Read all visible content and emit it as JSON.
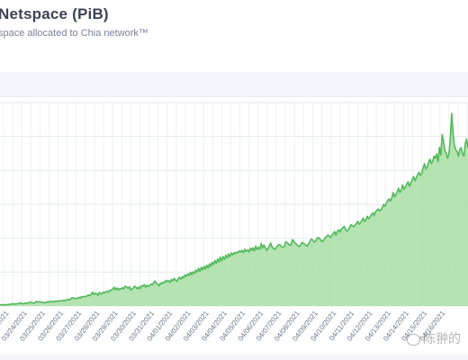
{
  "header": {
    "title": "Netspace (PiB)",
    "subtitle": "space allocated to Chia network™"
  },
  "watermark": {
    "text": "陈翀的"
  },
  "chart_data": {
    "type": "area",
    "title": "Netspace (PiB)",
    "subtitle": "space allocated to Chia network™",
    "xlabel": "",
    "ylabel": "",
    "grid": true,
    "color": "#52b95a",
    "fill": "#a8dea4",
    "x_tick_labels": [
      "03/23/2021",
      "03/24/2021",
      "03/25/2021",
      "03/26/2021",
      "03/27/2021",
      "03/28/2021",
      "03/29/2021",
      "03/30/2021",
      "03/31/2021",
      "04/01/2021",
      "04/02/2021",
      "04/03/2021",
      "04/04/2021",
      "04/05/2021",
      "04/06/2021",
      "04/07/2021",
      "04/08/2021",
      "04/09/2021",
      "04/10/2021",
      "04/11/2021",
      "04/12/2021",
      "04/13/2021",
      "04/14/2021",
      "04/15/2021",
      "04/16/2021"
    ],
    "series": [
      {
        "values": [
          12,
          10,
          14,
          8,
          13,
          11,
          16,
          12,
          18,
          22,
          17,
          21,
          19,
          24,
          22,
          30,
          26,
          20,
          24,
          28,
          23,
          31,
          36,
          34,
          30,
          27,
          35,
          42,
          36,
          40,
          38,
          35,
          33,
          29,
          35,
          41,
          37,
          44,
          39,
          43,
          40,
          46,
          42,
          48,
          45,
          52,
          47,
          55,
          50,
          58,
          62,
          56,
          66,
          78,
          70,
          74,
          68,
          72,
          81,
          75,
          88,
          85,
          90,
          86,
          95,
          102,
          96,
          110,
          130,
          108,
          120,
          115,
          100,
          125,
          118,
          112,
          130,
          122,
          135,
          140,
          128,
          150,
          148,
          160,
          175,
          152,
          168,
          150,
          162,
          158,
          172,
          160,
          185,
          178,
          165,
          180,
          150,
          158,
          170,
          185,
          176,
          160,
          178,
          162,
          190,
          185,
          200,
          175,
          195,
          183,
          192,
          205,
          198,
          220,
          232,
          210,
          202,
          190,
          215,
          208,
          225,
          218,
          240,
          228,
          236,
          220,
          248,
          235,
          258,
          242,
          230,
          255,
          268,
          250,
          275,
          262,
          290,
          278,
          300,
          285,
          315,
          292,
          320,
          305,
          335,
          318,
          350,
          325,
          362,
          338,
          370,
          345,
          380,
          355,
          395,
          372,
          410,
          388,
          425,
          398,
          440,
          412,
          455,
          422,
          462,
          435,
          475,
          450,
          485,
          462,
          495,
          478,
          500,
          488,
          505,
          496,
          515,
          505,
          520,
          498,
          530,
          510,
          522,
          505,
          540,
          520,
          545,
          515,
          560,
          528,
          548,
          530,
          585,
          540,
          570,
          548,
          520,
          536,
          560,
          590,
          548,
          540,
          530,
          545,
          560,
          575,
          570,
          552,
          548,
          556,
          600,
          592,
          580,
          568,
          572,
          620,
          605,
          588,
          575,
          565,
          555,
          570,
          595,
          585,
          578,
          565,
          560,
          585,
          610,
          625,
          615,
          598,
          605,
          632,
          640,
          628,
          612,
          600,
          618,
          636,
          650,
          662,
          655,
          640,
          660,
          680,
          695,
          660,
          700,
          712,
          690,
          720,
          730,
          745,
          715,
          700,
          710,
          735,
          760,
          748,
          740,
          756,
          772,
          790,
          765,
          780,
          800,
          822,
          790,
          805,
          838,
          815,
          830,
          855,
          870,
          845,
          880,
          895,
          905,
          886,
          900,
          920,
          948,
          930,
          962,
          985,
          1000,
          980,
          1010,
          1060,
          1020,
          1040,
          1070,
          1100,
          1060,
          1085,
          1130,
          1090,
          1110,
          1140,
          1160,
          1120,
          1150,
          1180,
          1210,
          1170,
          1200,
          1230,
          1250,
          1220,
          1240,
          1290,
          1330,
          1280,
          1300,
          1340,
          1370,
          1330,
          1350,
          1400,
          1380,
          1420,
          1350,
          1480,
          1410,
          1600,
          1540,
          1450,
          1430,
          1380,
          1420,
          1560,
          1800,
          1620,
          1500,
          1460,
          1440,
          1400,
          1460,
          1480,
          1420,
          1400,
          1520,
          1560,
          1480
        ]
      }
    ],
    "ylim": [
      0,
      1900
    ]
  }
}
